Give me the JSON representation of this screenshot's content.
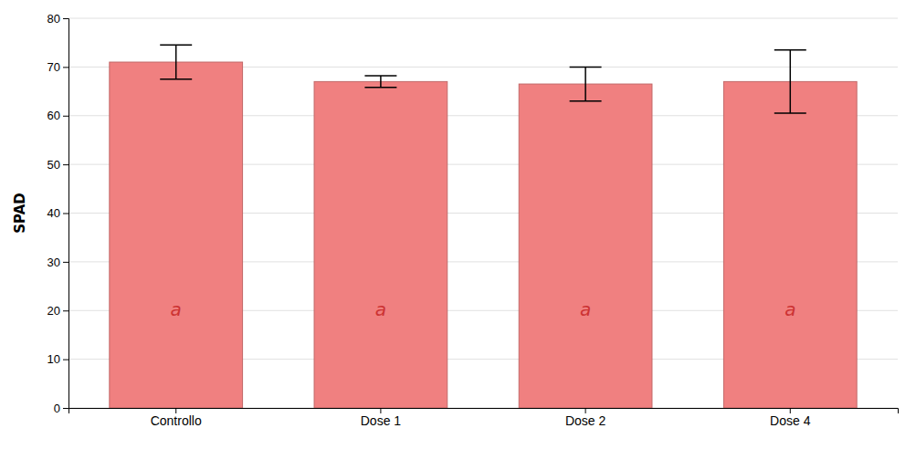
{
  "chart_data": {
    "type": "bar",
    "categories": [
      "Controllo",
      "Dose 1",
      "Dose 2",
      "Dose 4"
    ],
    "values": [
      71.0,
      67.0,
      66.5,
      67.0
    ],
    "errors": [
      3.5,
      1.2,
      3.5,
      6.5
    ],
    "color": "#F08080",
    "ylabel": "SPAD",
    "ylim": [
      0,
      80
    ],
    "yticks": [
      0,
      10,
      20,
      30,
      40,
      50,
      60,
      70,
      80
    ],
    "grid": true,
    "annotations": [
      {
        "text": "a",
        "x": "Controllo",
        "y": 20,
        "color": "#CC3333"
      },
      {
        "text": "a",
        "x": "Dose 1",
        "y": 20,
        "color": "#CC3333"
      },
      {
        "text": "a",
        "x": "Dose 2",
        "y": 20,
        "color": "#CC3333"
      },
      {
        "text": "a",
        "x": "Dose 4",
        "y": 20,
        "color": "#CC3333"
      }
    ]
  }
}
